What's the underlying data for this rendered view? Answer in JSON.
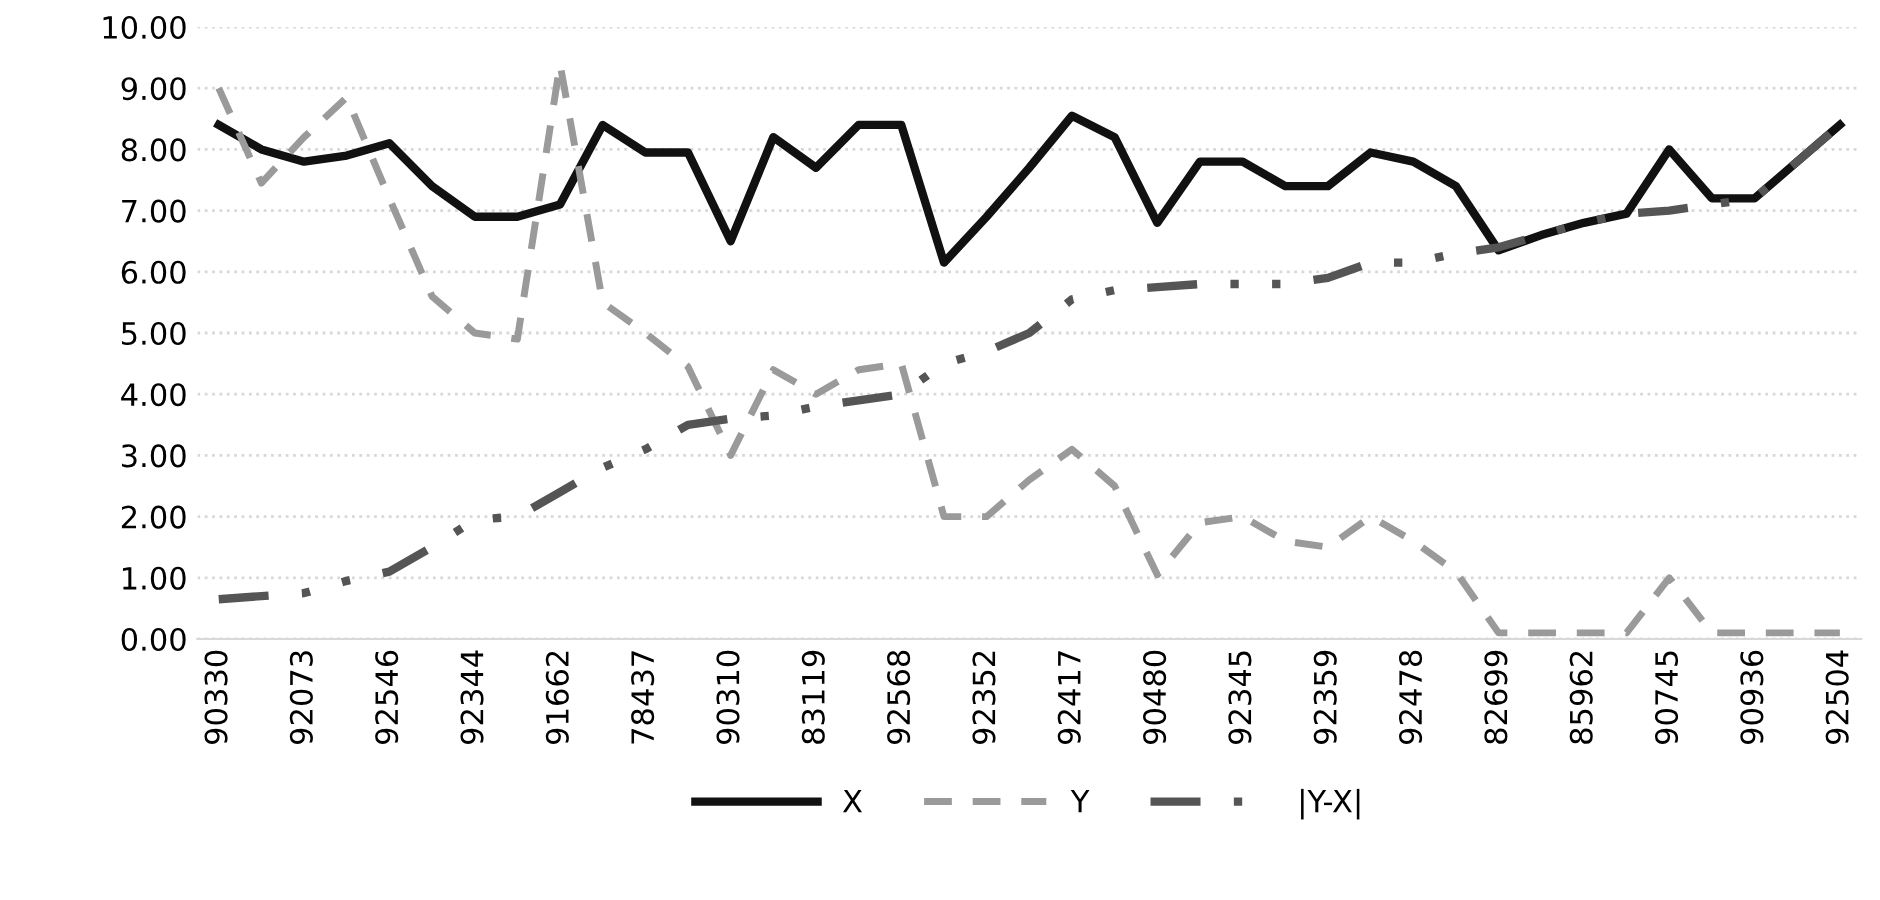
{
  "chart_data": {
    "type": "line",
    "categories": [
      "90330",
      null,
      "92073",
      null,
      "92546",
      null,
      "92344",
      null,
      "91662",
      null,
      "78437",
      null,
      "90310",
      null,
      "83119",
      null,
      "92568",
      null,
      "92352",
      null,
      "92417",
      null,
      "90480",
      null,
      "92345",
      null,
      "92359",
      null,
      "92478",
      null,
      "82699",
      null,
      "85962",
      null,
      "90745",
      null,
      "90936",
      null,
      "92504"
    ],
    "series": [
      {
        "name": "X",
        "color": "#111111",
        "line_style": "solid",
        "values": [
          8.4,
          8.0,
          7.8,
          7.9,
          8.1,
          7.4,
          6.9,
          6.9,
          7.1,
          8.4,
          7.95,
          7.95,
          6.5,
          8.2,
          7.7,
          8.4,
          8.4,
          6.15,
          6.9,
          7.7,
          8.55,
          8.2,
          6.8,
          7.8,
          7.8,
          7.4,
          7.4,
          7.95,
          7.8,
          7.4,
          6.35,
          6.6,
          6.8,
          6.95,
          8.0,
          7.2,
          7.2,
          7.8,
          8.4
        ]
      },
      {
        "name": "Y",
        "color": "#9a9a9a",
        "line_style": "dashed",
        "values": [
          9.0,
          7.45,
          8.2,
          8.85,
          7.2,
          5.6,
          5.0,
          4.9,
          9.4,
          5.5,
          5.0,
          4.45,
          3.0,
          4.4,
          4.0,
          4.4,
          4.5,
          2.0,
          2.0,
          2.6,
          3.1,
          2.5,
          1.05,
          1.9,
          2.0,
          1.6,
          1.5,
          2.0,
          1.6,
          1.1,
          0.1,
          0.1,
          0.1,
          0.1,
          1.0,
          0.1,
          0.1,
          0.1,
          0.1
        ]
      },
      {
        "name": "|Y-X|",
        "color": "#555555",
        "line_style": "dashdot",
        "values": [
          0.65,
          0.7,
          0.75,
          0.95,
          1.1,
          1.5,
          1.95,
          2.0,
          2.4,
          2.8,
          3.1,
          3.5,
          3.6,
          3.65,
          3.8,
          3.9,
          4.0,
          4.5,
          4.7,
          5.0,
          5.55,
          5.7,
          5.75,
          5.8,
          5.8,
          5.8,
          5.9,
          6.15,
          6.15,
          6.3,
          6.4,
          6.6,
          6.8,
          6.95,
          7.0,
          7.1,
          7.2,
          7.8,
          8.4
        ]
      }
    ],
    "ylim": [
      0,
      10
    ],
    "yticks": [
      {
        "value": 0,
        "label": "0.00"
      },
      {
        "value": 1,
        "label": "1.00"
      },
      {
        "value": 2,
        "label": "2.00"
      },
      {
        "value": 3,
        "label": "3.00"
      },
      {
        "value": 4,
        "label": "4.00"
      },
      {
        "value": 5,
        "label": "5.00"
      },
      {
        "value": 6,
        "label": "6.00"
      },
      {
        "value": 7,
        "label": "7.00"
      },
      {
        "value": 8,
        "label": "8.00"
      },
      {
        "value": 9,
        "label": "9.00"
      },
      {
        "value": 10,
        "label": "10.00"
      }
    ],
    "grid": "y",
    "legend": "bottom",
    "marker": "none"
  }
}
